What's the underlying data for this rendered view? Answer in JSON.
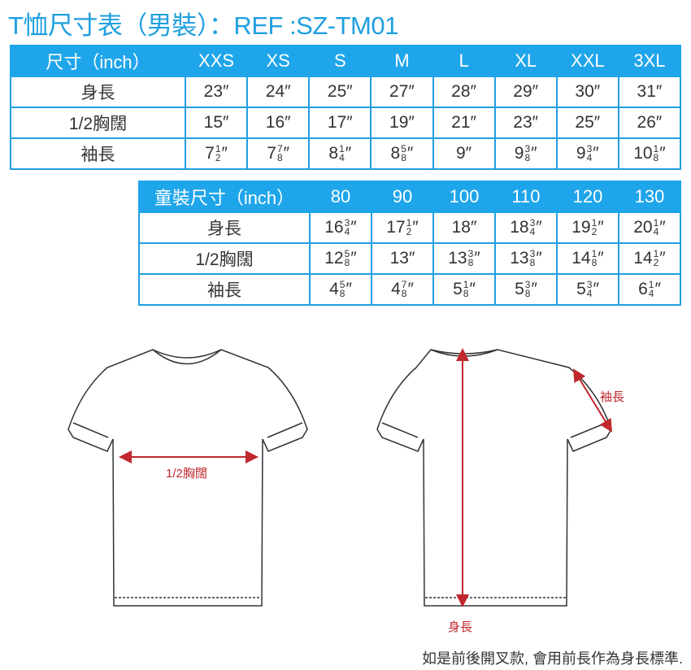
{
  "title": "T恤尺寸表（男裝）：REF :SZ-TM01",
  "adult": {
    "header": [
      "尺寸（inch）",
      "XXS",
      "XS",
      "S",
      "M",
      "L",
      "XL",
      "XXL",
      "3XL"
    ],
    "rows": [
      {
        "label": "身長",
        "cells": [
          {
            "w": "23″"
          },
          {
            "w": "24″"
          },
          {
            "w": "25″"
          },
          {
            "w": "27″"
          },
          {
            "w": "28″"
          },
          {
            "w": "29″"
          },
          {
            "w": "30″"
          },
          {
            "w": "31″"
          }
        ]
      },
      {
        "label": "1/2胸闊",
        "cells": [
          {
            "w": "15″"
          },
          {
            "w": "16″"
          },
          {
            "w": "17″"
          },
          {
            "w": "19″"
          },
          {
            "w": "21″"
          },
          {
            "w": "23″"
          },
          {
            "w": "25″"
          },
          {
            "w": "26″"
          }
        ]
      },
      {
        "label": "袖長",
        "cells": [
          {
            "w": "7",
            "n": "1",
            "d": "2"
          },
          {
            "w": "7",
            "n": "7",
            "d": "8"
          },
          {
            "w": "8",
            "n": "1",
            "d": "4"
          },
          {
            "w": "8",
            "n": "5",
            "d": "8"
          },
          {
            "w": "9″"
          },
          {
            "w": "9",
            "n": "3",
            "d": "8"
          },
          {
            "w": "9",
            "n": "3",
            "d": "4"
          },
          {
            "w": "10",
            "n": "1",
            "d": "8"
          }
        ]
      }
    ]
  },
  "kids": {
    "header": [
      "童裝尺寸（inch）",
      "80",
      "90",
      "100",
      "110",
      "120",
      "130"
    ],
    "rows": [
      {
        "label": "身長",
        "cells": [
          {
            "w": "16",
            "n": "3",
            "d": "4"
          },
          {
            "w": "17",
            "n": "1",
            "d": "2"
          },
          {
            "w": "18″"
          },
          {
            "w": "18",
            "n": "3",
            "d": "4"
          },
          {
            "w": "19",
            "n": "1",
            "d": "2"
          },
          {
            "w": "20",
            "n": "1",
            "d": "4"
          }
        ]
      },
      {
        "label": "1/2胸闊",
        "cells": [
          {
            "w": "12",
            "n": "5",
            "d": "8"
          },
          {
            "w": "13″"
          },
          {
            "w": "13",
            "n": "3",
            "d": "8"
          },
          {
            "w": "13",
            "n": "3",
            "d": "8"
          },
          {
            "w": "14",
            "n": "1",
            "d": "8"
          },
          {
            "w": "14",
            "n": "1",
            "d": "2"
          }
        ]
      },
      {
        "label": "袖長",
        "cells": [
          {
            "w": "4",
            "n": "5",
            "d": "8"
          },
          {
            "w": "4",
            "n": "7",
            "d": "8"
          },
          {
            "w": "5",
            "n": "1",
            "d": "8"
          },
          {
            "w": "5",
            "n": "3",
            "d": "8"
          },
          {
            "w": "5",
            "n": "3",
            "d": "4"
          },
          {
            "w": "6",
            "n": "1",
            "d": "4"
          }
        ]
      }
    ]
  },
  "labels": {
    "chest": "1/2胸闊",
    "sleeve": "袖長",
    "length": "身長"
  },
  "note": "如是前後開叉款, 會用前長作為身長標準.",
  "colors": {
    "accent": "#1fa5ea",
    "measure": "#c0282d"
  }
}
